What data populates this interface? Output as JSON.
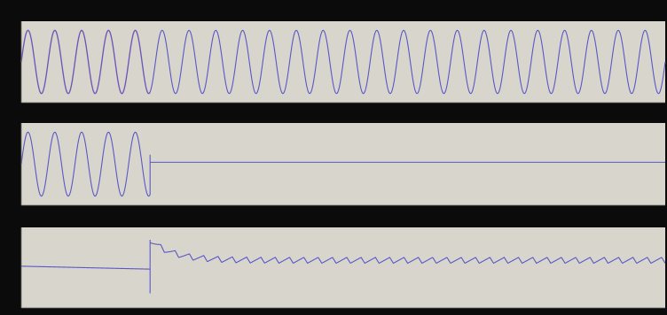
{
  "colors": {
    "background": "#0b0b0b",
    "axes_face": "#d8d6cc",
    "trace_blue": "#5a57c6",
    "trace_pink": "#c98a9c",
    "title_text": "#d9d9d2"
  },
  "chart_data": [
    {
      "type": "line",
      "title": "",
      "xlabel": "",
      "ylabel": "",
      "xlim": [
        0,
        1
      ],
      "ylim": [
        -1,
        1
      ],
      "grid": false,
      "series": [
        {
          "color": "#c98a9c",
          "kind": "sine",
          "x_range": [
            0,
            0.2
          ],
          "cycles_per_unit": 24,
          "amplitude": 0.85,
          "offset": 0
        },
        {
          "color": "#5a57c6",
          "kind": "sine",
          "x_range": [
            0,
            1
          ],
          "cycles_per_unit": 24,
          "amplitude": 0.85,
          "offset": 0
        }
      ]
    },
    {
      "type": "line",
      "title": "",
      "xlabel": "",
      "ylabel": "",
      "xlim": [
        0,
        1
      ],
      "ylim": [
        -1,
        1
      ],
      "grid": false,
      "series": [
        {
          "color": "#5a57c6",
          "kind": "sine_then_flat",
          "x_range": [
            0,
            1
          ],
          "cycles_per_unit": 24,
          "amplitude": 0.85,
          "switch_x": 0.2,
          "flat_value": 0.05
        }
      ]
    },
    {
      "type": "line",
      "title": "",
      "xlabel": "",
      "ylabel": "",
      "xlim": [
        0,
        1
      ],
      "ylim": [
        0,
        1
      ],
      "grid": false,
      "series": [
        {
          "color": "#5a57c6",
          "kind": "step_sawtooth",
          "x_range": [
            0,
            1
          ],
          "pre_value": 0.52,
          "pre_end_value": 0.48,
          "switch_x": 0.2,
          "spike_low": 0.15,
          "peak_value": 0.88,
          "settle_value": 0.6,
          "ripple_amplitude": 0.04,
          "ripple_per_unit": 45
        }
      ]
    }
  ]
}
